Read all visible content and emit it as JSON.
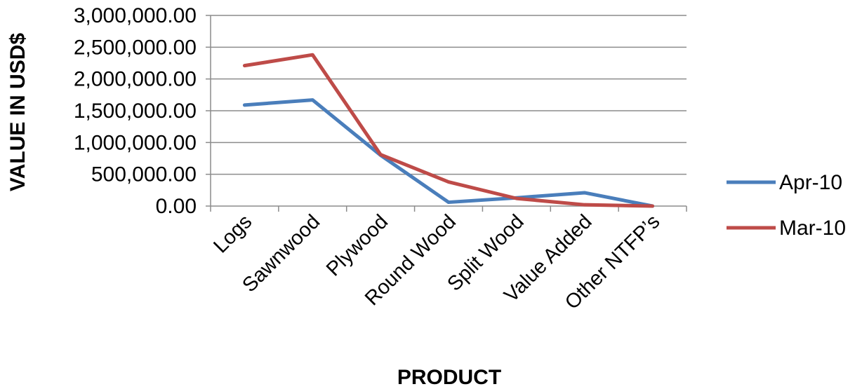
{
  "chart_data": {
    "type": "line",
    "title": "",
    "xlabel": "PRODUCT",
    "ylabel": "VALUE IN USD$",
    "categories": [
      "Logs",
      "Sawnwood",
      "Plywood",
      "Round Wood",
      "Split Wood",
      "Value Added",
      "Other NTFP’s"
    ],
    "ylim": [
      0,
      3000000
    ],
    "yticks": [
      0,
      500000,
      1000000,
      1500000,
      2000000,
      2500000,
      3000000
    ],
    "ytick_labels": [
      "0.00",
      "500,000.00",
      "1,000,000.00",
      "1,500,000.00",
      "2,000,000.00",
      "2,500,000.00",
      "3,000,000.00"
    ],
    "grid": true,
    "legend_position": "right",
    "series": [
      {
        "name": "Apr-10",
        "color": "#4a7ebb",
        "values": [
          1590000,
          1670000,
          800000,
          60000,
          130000,
          210000,
          0
        ]
      },
      {
        "name": "Mar-10",
        "color": "#be4b48",
        "values": [
          2210000,
          2380000,
          810000,
          380000,
          120000,
          20000,
          0
        ]
      }
    ]
  }
}
